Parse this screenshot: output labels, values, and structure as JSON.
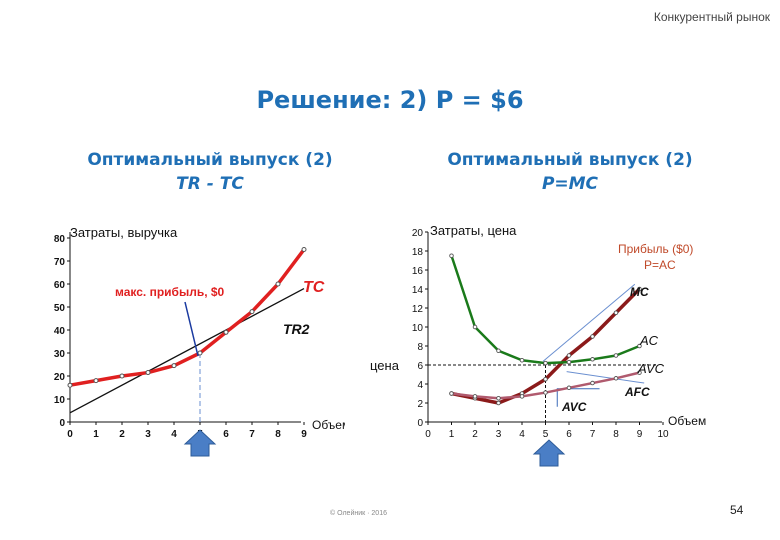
{
  "header": {
    "section": "Конкурентный рынок"
  },
  "title": "Решение: 2) P = $6",
  "subtitles": {
    "left": {
      "line1": "Оптимальный выпуск (2)",
      "line2": "TR - TC"
    },
    "right": {
      "line1": "Оптимальный выпуск (2)",
      "line2": "P=MC"
    }
  },
  "footer": {
    "copyright": "© Олейник · 2016",
    "page_number": "54"
  },
  "chart_data": [
    {
      "type": "line",
      "ylabel": "Затраты, выручка",
      "xlabel": "Объем",
      "xlim": [
        0,
        9
      ],
      "ylim": [
        0,
        80
      ],
      "xticks": [
        "0",
        "1",
        "2",
        "3",
        "4",
        "5",
        "6",
        "7",
        "8",
        "9"
      ],
      "yticks": [
        "0",
        "10",
        "20",
        "30",
        "40",
        "50",
        "60",
        "70",
        "80"
      ],
      "series": [
        {
          "name": "TC",
          "color": "#e02020",
          "x": [
            0,
            1,
            2,
            3,
            4,
            5,
            6,
            7,
            8,
            9
          ],
          "y": [
            16,
            18,
            20,
            21.5,
            24.5,
            30,
            39,
            48,
            60,
            75
          ]
        },
        {
          "name": "TR2",
          "color": "#111111",
          "x": [
            0,
            9
          ],
          "y": [
            4,
            58
          ]
        }
      ],
      "annotations": [
        {
          "text": "макс. прибыль, $0",
          "color": "#e02020",
          "x": 5
        }
      ],
      "marker": {
        "type": "arrow-up",
        "x": 5
      }
    },
    {
      "type": "line",
      "ylabel": "Затраты, цена",
      "xlabel": "Объем",
      "xlim": [
        0,
        10
      ],
      "ylim": [
        0,
        20
      ],
      "xticks": [
        "0",
        "1",
        "2",
        "3",
        "4",
        "5",
        "6",
        "7",
        "8",
        "9",
        "10"
      ],
      "yticks": [
        "0",
        "2",
        "4",
        "6",
        "8",
        "10",
        "12",
        "14",
        "16",
        "18",
        "20"
      ],
      "price_axis_label": "цена",
      "price": 6,
      "series": [
        {
          "name": "MC",
          "color": "#8b1a1a",
          "x": [
            1,
            2,
            3,
            4,
            5,
            6,
            7,
            8,
            9
          ],
          "y": [
            3,
            2.5,
            2,
            3,
            4.5,
            7,
            9,
            11.5,
            14
          ]
        },
        {
          "name": "AC",
          "color": "#1a7a1a",
          "x": [
            1,
            2,
            3,
            4,
            5,
            6,
            7,
            8,
            9
          ],
          "y": [
            17.5,
            10,
            7.5,
            6.5,
            6.2,
            6.3,
            6.6,
            7,
            8
          ]
        },
        {
          "name": "AVC",
          "color": "#b05a6e",
          "x": [
            1,
            2,
            3,
            4,
            5,
            6,
            7,
            8,
            9
          ],
          "y": [
            3,
            2.7,
            2.5,
            2.7,
            3.1,
            3.6,
            4.1,
            4.6,
            5.2
          ]
        }
      ],
      "annotations": [
        {
          "text": "Прибыль ($0)"
        },
        {
          "text": "P=AC"
        },
        {
          "text": "MC"
        },
        {
          "text": "AC"
        },
        {
          "text": "AVC"
        },
        {
          "text": "AFC"
        },
        {
          "text": "AVC"
        }
      ],
      "marker": {
        "type": "arrow-up",
        "x": 5
      }
    }
  ]
}
